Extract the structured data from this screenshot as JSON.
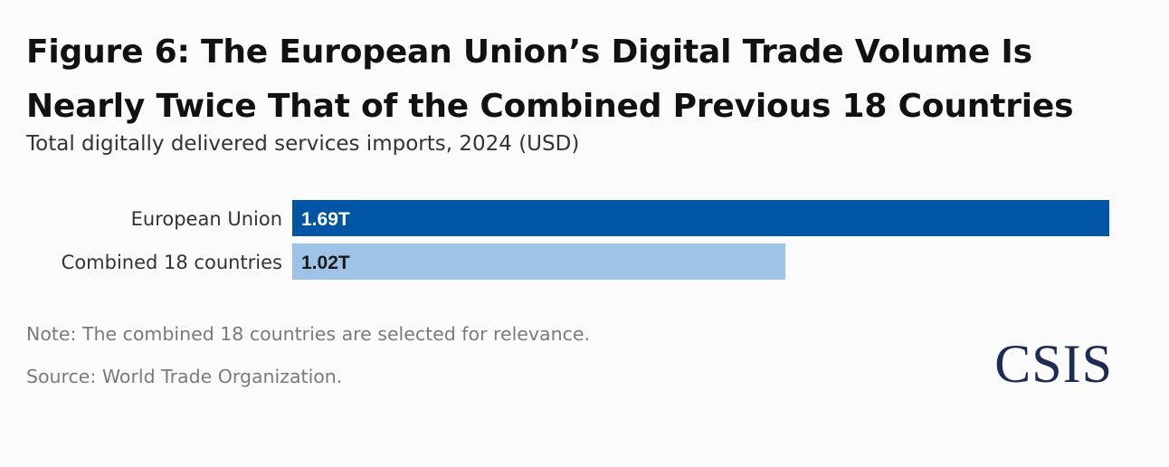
{
  "header": {
    "title_line1": "Figure 6: The European Union’s Digital Trade Volume Is",
    "title_line2": "Nearly Twice That of the Combined Previous 18 Countries",
    "subtitle": "Total digitally delivered services imports, 2024 (USD)"
  },
  "chart_data": {
    "type": "bar",
    "orientation": "horizontal",
    "title": "Figure 6: The European Union’s Digital Trade Volume Is Nearly Twice That of the Combined Previous 18 Countries",
    "subtitle": "Total digitally delivered services imports, 2024 (USD)",
    "categories": [
      "European Union",
      "Combined 18 countries"
    ],
    "values": [
      1.69,
      1.02
    ],
    "value_unit": "trillion USD",
    "data_labels": [
      "1.69T",
      "1.02T"
    ],
    "colors": [
      "#0055a4",
      "#9fc3e7"
    ],
    "label_colors": [
      "#ffffff",
      "#1a1a1a"
    ],
    "xlim": [
      0,
      1.69
    ],
    "xlabel": "",
    "ylabel": "",
    "grid": false,
    "legend": "none"
  },
  "footer": {
    "note": "Note: The combined 18 countries are selected for relevance.",
    "source": "Source: World Trade Organization.",
    "logo_text": "CSIS"
  }
}
